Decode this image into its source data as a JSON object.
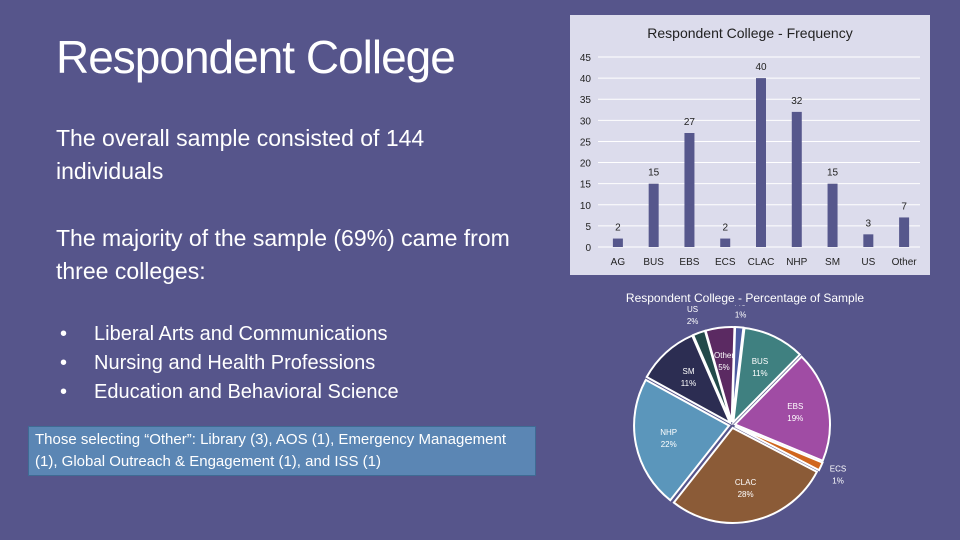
{
  "slide": {
    "title": "Respondent College",
    "p1": "The overall sample consisted of 144 individuals",
    "p2": "The majority of the sample (69%) came from three colleges:",
    "bullets": [
      "Liberal Arts and Communications",
      "Nursing and Health Professions",
      "Education and Behavioral Science"
    ],
    "note": "Those selecting “Other”: Library (3), AOS (1), Emergency Management (1), Global Outreach & Engagement (1), and ISS (1)"
  },
  "chart_data": [
    {
      "type": "bar",
      "title": "Respondent College - Frequency",
      "categories": [
        "AG",
        "BUS",
        "EBS",
        "ECS",
        "CLAC",
        "NHP",
        "SM",
        "US",
        "Other"
      ],
      "values": [
        2,
        15,
        27,
        2,
        40,
        32,
        15,
        3,
        7
      ],
      "ylim": [
        0,
        45
      ],
      "yticks": [
        0,
        5,
        10,
        15,
        20,
        25,
        30,
        35,
        40,
        45
      ],
      "grid": true,
      "color": "#56578c"
    },
    {
      "type": "pie",
      "title": "Respondent College - Percentage of Sample",
      "categories": [
        "AG",
        "BUS",
        "EBS",
        "ECS",
        "CLAC",
        "NHP",
        "SM",
        "US",
        "Other"
      ],
      "values": [
        1,
        11,
        19,
        1,
        28,
        22,
        11,
        2,
        5
      ],
      "counts": [
        2,
        15,
        27,
        2,
        40,
        32,
        15,
        3,
        7
      ],
      "colors": [
        "#4c5aa0",
        "#3f8080",
        "#a04ca4",
        "#d0661e",
        "#8b5b37",
        "#5b96bb",
        "#2c2d52",
        "#234a4a",
        "#5b2a62"
      ]
    }
  ]
}
